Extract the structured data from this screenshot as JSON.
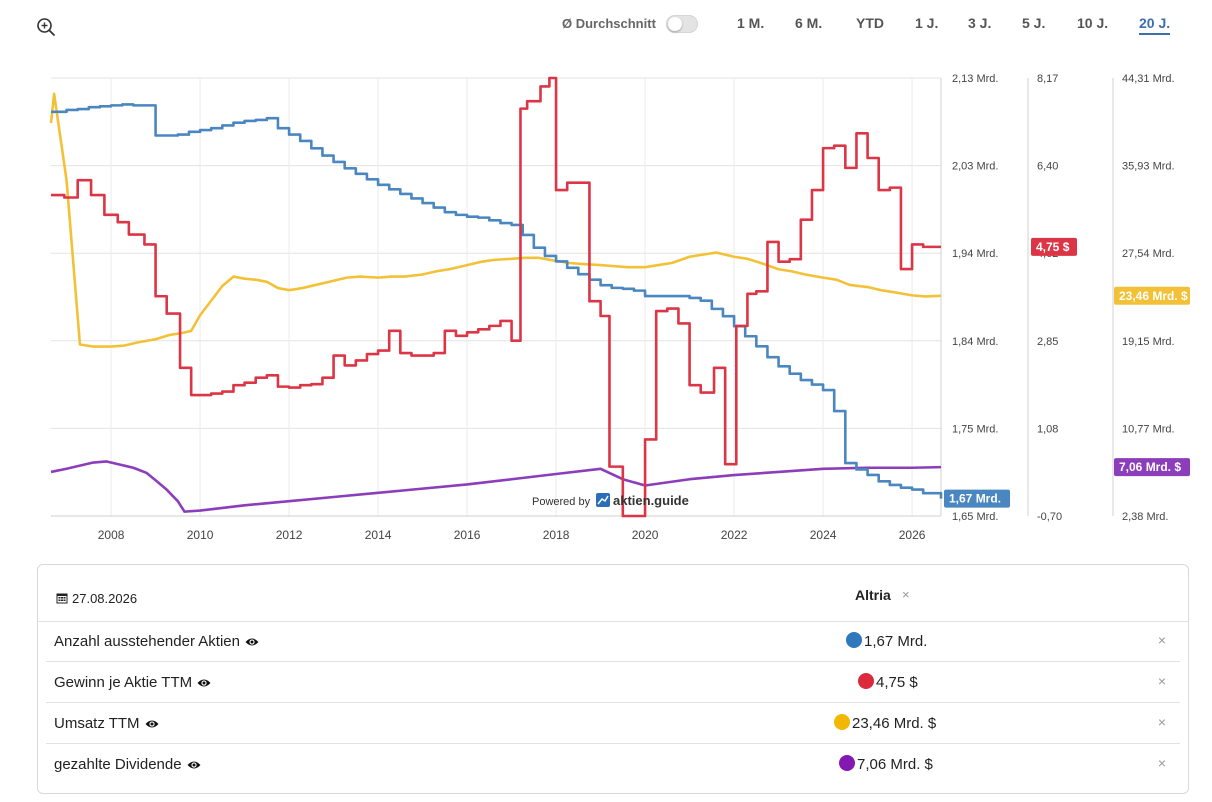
{
  "toolbar": {
    "average_label": "Ø Durchschnitt",
    "ranges": [
      "1 M.",
      "6 M.",
      "YTD",
      "1 J.",
      "3 J.",
      "5 J.",
      "10 J.",
      "20 J."
    ],
    "active_range": "20 J."
  },
  "chart_data": {
    "type": "line",
    "x_range": [
      2006.65,
      2026.65
    ],
    "x_ticks": [
      "2008",
      "2010",
      "2012",
      "2014",
      "2016",
      "2018",
      "2020",
      "2022",
      "2024",
      "2026"
    ],
    "grid": "on",
    "watermark": {
      "prefix": "Powered by",
      "brand": "aktien.guide"
    },
    "axes": [
      {
        "id": "shares",
        "ticks": [
          "2,13 Mrd.",
          "2,03 Mrd.",
          "1,94 Mrd.",
          "1,84 Mrd.",
          "1,75 Mrd.",
          "1,65 Mrd."
        ],
        "range": [
          1.65,
          2.13
        ],
        "unit": "Mrd."
      },
      {
        "id": "eps",
        "ticks": [
          "8,17",
          "6,40",
          "4,62",
          "2,85",
          "1,08",
          "-0,70"
        ],
        "range": [
          -0.7,
          8.17
        ],
        "unit": "$"
      },
      {
        "id": "revenue",
        "ticks": [
          "44,31 Mrd.",
          "35,93 Mrd.",
          "27,54 Mrd.",
          "19,15 Mrd.",
          "10,77 Mrd.",
          "2,38 Mrd."
        ],
        "range": [
          2.38,
          44.31
        ],
        "unit": "Mrd. $"
      }
    ],
    "series": [
      {
        "name": "Anzahl ausstehender Aktien",
        "axis": "shares",
        "color": "#4a86c0",
        "last_label": "1,67 Mrd.",
        "x": [
          2006.65,
          2007.0,
          2007.25,
          2007.5,
          2007.75,
          2008.0,
          2008.25,
          2008.5,
          2009.0,
          2009.25,
          2009.5,
          2009.75,
          2010.0,
          2010.25,
          2010.5,
          2010.75,
          2011.0,
          2011.25,
          2011.5,
          2011.75,
          2012.0,
          2012.25,
          2012.5,
          2012.75,
          2013.0,
          2013.25,
          2013.5,
          2013.75,
          2014.0,
          2014.25,
          2014.5,
          2014.75,
          2015.0,
          2015.25,
          2015.5,
          2015.75,
          2016.0,
          2016.25,
          2016.5,
          2016.75,
          2017.0,
          2017.25,
          2017.5,
          2017.75,
          2018.0,
          2018.25,
          2018.5,
          2018.75,
          2019.0,
          2019.25,
          2019.5,
          2019.75,
          2020.0,
          2020.25,
          2020.5,
          2020.75,
          2021.0,
          2021.25,
          2021.5,
          2021.75,
          2022.0,
          2022.25,
          2022.5,
          2022.75,
          2023.0,
          2023.25,
          2023.5,
          2023.75,
          2024.0,
          2024.25,
          2024.5,
          2024.75,
          2025.0,
          2025.25,
          2025.5,
          2025.75,
          2026.0,
          2026.25,
          2026.65
        ],
        "y": [
          2.093,
          2.095,
          2.096,
          2.098,
          2.099,
          2.1,
          2.101,
          2.1,
          2.067,
          2.067,
          2.068,
          2.071,
          2.073,
          2.075,
          2.078,
          2.081,
          2.083,
          2.084,
          2.086,
          2.075,
          2.068,
          2.061,
          2.053,
          2.045,
          2.038,
          2.031,
          2.025,
          2.019,
          2.013,
          2.008,
          2.003,
          1.998,
          1.993,
          1.988,
          1.983,
          1.98,
          1.978,
          1.977,
          1.974,
          1.971,
          1.969,
          1.958,
          1.944,
          1.935,
          1.929,
          1.922,
          1.915,
          1.909,
          1.903,
          1.9,
          1.899,
          1.897,
          1.891,
          1.891,
          1.891,
          1.891,
          1.889,
          1.886,
          1.877,
          1.869,
          1.858,
          1.847,
          1.836,
          1.824,
          1.814,
          1.806,
          1.799,
          1.794,
          1.788,
          1.765,
          1.708,
          1.701,
          1.695,
          1.688,
          1.684,
          1.681,
          1.679,
          1.675,
          1.669
        ]
      },
      {
        "name": "Gewinn je Aktie TTM",
        "axis": "eps",
        "color": "#dc3545",
        "last_label": "4,75 $",
        "x": [
          2006.65,
          2006.95,
          2007.25,
          2007.55,
          2007.85,
          2008.15,
          2008.4,
          2008.75,
          2009.0,
          2009.25,
          2009.55,
          2009.8,
          2010.0,
          2010.25,
          2010.5,
          2010.75,
          2011.0,
          2011.25,
          2011.5,
          2011.75,
          2012.0,
          2012.25,
          2012.5,
          2012.75,
          2013.0,
          2013.25,
          2013.5,
          2013.75,
          2014.0,
          2014.25,
          2014.5,
          2014.75,
          2015.0,
          2015.25,
          2015.5,
          2015.75,
          2016.0,
          2016.25,
          2016.5,
          2016.75,
          2017.0,
          2017.2,
          2017.35,
          2017.65,
          2017.85,
          2018.0,
          2018.25,
          2018.5,
          2018.75,
          2019.0,
          2019.2,
          2019.5,
          2019.75,
          2020.0,
          2020.25,
          2020.5,
          2020.75,
          2021.0,
          2021.25,
          2021.55,
          2021.8,
          2022.05,
          2022.3,
          2022.5,
          2022.75,
          2023.0,
          2023.25,
          2023.5,
          2023.75,
          2024.0,
          2024.25,
          2024.5,
          2024.75,
          2025.0,
          2025.25,
          2025.5,
          2025.75,
          2026.0,
          2026.25,
          2026.65
        ],
        "y": [
          5.8,
          5.75,
          6.1,
          5.8,
          5.4,
          5.25,
          5.0,
          4.8,
          3.75,
          3.4,
          2.3,
          1.75,
          1.75,
          1.78,
          1.82,
          1.95,
          2.0,
          2.1,
          2.15,
          1.92,
          1.9,
          1.95,
          1.97,
          2.1,
          2.55,
          2.35,
          2.45,
          2.58,
          2.65,
          3.05,
          2.6,
          2.55,
          2.55,
          2.6,
          3.05,
          2.95,
          3.02,
          3.08,
          3.15,
          3.25,
          2.85,
          7.55,
          7.7,
          8.0,
          8.17,
          5.9,
          6.05,
          6.05,
          3.65,
          3.35,
          0.3,
          -0.7,
          -0.7,
          0.85,
          3.45,
          3.5,
          3.2,
          1.95,
          1.8,
          2.3,
          0.35,
          3.15,
          3.8,
          3.85,
          4.85,
          4.45,
          4.5,
          5.3,
          5.9,
          6.75,
          6.8,
          6.35,
          7.05,
          6.55,
          5.9,
          5.95,
          4.3,
          4.8,
          4.75,
          4.75
        ]
      },
      {
        "name": "Umsatz TTM",
        "axis": "revenue",
        "color": "#f3c137",
        "last_label": "23,46 Mrd. $",
        "x": [
          2006.65,
          2006.72,
          2007.0,
          2007.3,
          2007.6,
          2008.0,
          2008.3,
          2008.6,
          2009.0,
          2009.3,
          2009.6,
          2009.8,
          2010.0,
          2010.25,
          2010.5,
          2010.75,
          2011.0,
          2011.25,
          2011.5,
          2011.75,
          2012.0,
          2012.3,
          2012.6,
          2013.0,
          2013.3,
          2013.6,
          2014.0,
          2014.3,
          2014.6,
          2015.0,
          2015.3,
          2015.6,
          2016.0,
          2016.3,
          2016.6,
          2017.0,
          2017.3,
          2017.6,
          2018.0,
          2018.3,
          2018.6,
          2019.0,
          2019.3,
          2019.6,
          2020.0,
          2020.3,
          2020.6,
          2021.0,
          2021.3,
          2021.6,
          2022.0,
          2022.3,
          2022.6,
          2023.0,
          2023.3,
          2023.6,
          2024.0,
          2024.3,
          2024.6,
          2025.0,
          2025.3,
          2025.6,
          2026.0,
          2026.3,
          2026.65
        ],
        "y": [
          40.0,
          42.8,
          34.5,
          18.8,
          18.6,
          18.6,
          18.7,
          19.0,
          19.3,
          19.7,
          19.9,
          20.1,
          21.6,
          23.0,
          24.4,
          25.3,
          25.1,
          25.0,
          24.8,
          24.2,
          24.0,
          24.2,
          24.5,
          24.9,
          25.2,
          25.3,
          25.2,
          25.3,
          25.3,
          25.5,
          25.8,
          26.0,
          26.4,
          26.7,
          26.9,
          27.0,
          27.1,
          27.1,
          26.8,
          26.6,
          26.5,
          26.4,
          26.3,
          26.2,
          26.2,
          26.4,
          26.6,
          27.2,
          27.4,
          27.6,
          27.2,
          27.0,
          26.6,
          26.0,
          25.8,
          25.5,
          25.2,
          25.0,
          24.5,
          24.3,
          24.0,
          23.8,
          23.5,
          23.4,
          23.46
        ]
      },
      {
        "name": "gezahlte Dividende",
        "axis": "revenue",
        "color": "#8c3dba",
        "last_label": "7,06 Mrd. $",
        "x": [
          2006.65,
          2007.0,
          2007.3,
          2007.6,
          2007.9,
          2008.2,
          2008.5,
          2008.8,
          2009.0,
          2009.25,
          2009.5,
          2009.65,
          2010.0,
          2011.0,
          2012.0,
          2013.0,
          2014.0,
          2015.0,
          2016.0,
          2017.0,
          2018.0,
          2019.0,
          2019.5,
          2020.0,
          2021.0,
          2022.0,
          2023.0,
          2024.0,
          2025.0,
          2026.0,
          2026.65
        ],
        "y": [
          6.6,
          6.9,
          7.2,
          7.5,
          7.6,
          7.3,
          7.0,
          6.5,
          5.8,
          4.9,
          3.8,
          2.8,
          2.9,
          3.4,
          3.8,
          4.2,
          4.6,
          5.0,
          5.4,
          5.9,
          6.4,
          6.9,
          5.9,
          5.3,
          5.9,
          6.3,
          6.6,
          6.9,
          7.0,
          7.0,
          7.06
        ]
      }
    ]
  },
  "legend_table": {
    "date": "27.08.2026",
    "column_title": "Altria",
    "rows": [
      {
        "label": "Anzahl ausstehender Aktien",
        "value": "1,67 Mrd.",
        "color": "#2f78bd"
      },
      {
        "label": "Gewinn je Aktie TTM",
        "value": "4,75 $",
        "color": "#dc2a3c"
      },
      {
        "label": "Umsatz TTM",
        "value": "23,46 Mrd. $",
        "color": "#f2b705"
      },
      {
        "label": "gezahlte Dividende",
        "value": "7,06 Mrd. $",
        "color": "#8318b3"
      }
    ],
    "remove_symbol": "×"
  }
}
